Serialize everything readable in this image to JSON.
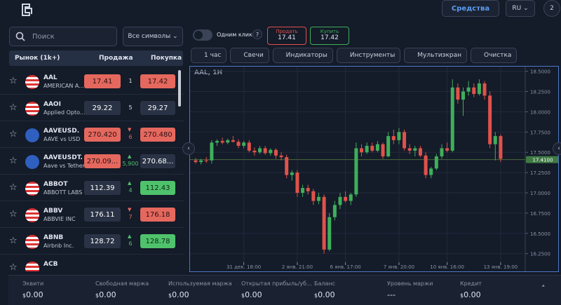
{
  "topbar": {
    "funds_button": "Средства",
    "language": "RU",
    "notifications": "2"
  },
  "sidebar": {
    "search_placeholder": "Поиск",
    "filter": "Все символы",
    "columns": {
      "market": "Рынок (1k+)",
      "sell": "Продажа",
      "buy": "Покупка"
    },
    "rows": [
      {
        "symbol": "AAL",
        "name": "AMERICAN A...",
        "sell": "17.41",
        "spread": "1",
        "buy": "17.42",
        "sell_style": "down",
        "buy_style": "down",
        "trend": "none"
      },
      {
        "symbol": "AAOI",
        "name": "Applied Opto...",
        "sell": "29.22",
        "spread": "5",
        "buy": "29.27",
        "sell_style": "flat",
        "buy_style": "flat",
        "trend": "none"
      },
      {
        "symbol": "AAVEUSD.",
        "name": "AAVE vs USD",
        "sell": "270.420",
        "spread": "6",
        "buy": "270.480",
        "sell_style": "down",
        "buy_style": "down",
        "trend": "down"
      },
      {
        "symbol": "AAVEUSDT.",
        "name": "Aave vs Tether",
        "sell": "270.09...",
        "spread": "5,900",
        "buy": "270.68...",
        "sell_style": "down",
        "buy_style": "flat",
        "trend": "up"
      },
      {
        "symbol": "ABBOT",
        "name": "ABBOTT LABS",
        "sell": "112.39",
        "spread": "4",
        "buy": "112.43",
        "sell_style": "flat",
        "buy_style": "up",
        "trend": "up"
      },
      {
        "symbol": "ABBV",
        "name": "ABBVIE INC",
        "sell": "176.11",
        "spread": "7",
        "buy": "176.18",
        "sell_style": "flat",
        "buy_style": "down",
        "trend": "down"
      },
      {
        "symbol": "ABNB",
        "name": "Airbnb Inc.",
        "sell": "128.72",
        "spread": "6",
        "buy": "128.78",
        "sell_style": "flat",
        "buy_style": "up",
        "trend": "up"
      },
      {
        "symbol": "ACB",
        "name": "",
        "sell": "",
        "spread": "",
        "buy": "",
        "sell_style": "flat",
        "buy_style": "flat",
        "trend": "none"
      }
    ]
  },
  "toolbar": {
    "one_click": "Одним кликом",
    "sell_label": "Продать",
    "sell_price": "17.41",
    "buy_label": "Купить",
    "buy_price": "17.42",
    "buttons": [
      "1 час",
      "Свечи",
      "Индикаторы",
      "Инструменты",
      "Мультиэкран",
      "Очистка"
    ]
  },
  "chart_data": {
    "type": "candlestick",
    "title": "AAL, 1H",
    "up_color": "#3fae5a",
    "down_color": "#e0524a",
    "open": [
      17.4,
      17.38,
      17.4,
      17.4,
      17.62,
      17.64,
      17.62,
      17.65,
      17.63,
      17.58,
      17.62,
      17.52,
      17.5,
      17.55,
      17.49,
      17.53,
      17.46,
      17.44,
      17.22,
      17.25,
      17.0,
      17.06,
      17.02,
      16.9,
      16.95,
      16.3,
      16.7,
      16.85,
      16.95,
      16.9,
      16.98,
      17.55,
      17.5,
      17.58,
      17.52,
      17.6,
      17.45,
      17.7,
      17.65,
      17.75,
      17.55,
      17.52,
      17.55,
      17.46,
      17.22,
      17.3,
      17.45,
      17.55,
      17.52,
      18.3,
      18.15,
      18.25,
      18.3,
      18.22,
      18.35,
      18.2,
      17.6,
      17.7
    ],
    "high": [
      17.43,
      17.42,
      17.44,
      17.65,
      17.66,
      17.68,
      17.67,
      17.7,
      17.66,
      17.64,
      17.65,
      17.56,
      17.58,
      17.58,
      17.55,
      17.55,
      17.5,
      17.47,
      17.28,
      17.28,
      17.1,
      17.1,
      17.05,
      17.0,
      16.98,
      16.75,
      16.9,
      17.0,
      17.02,
      17.0,
      17.62,
      17.6,
      17.62,
      17.62,
      17.64,
      17.62,
      17.75,
      17.78,
      17.8,
      17.78,
      17.6,
      17.58,
      17.58,
      17.5,
      17.32,
      17.48,
      17.6,
      17.62,
      18.4,
      18.35,
      18.3,
      18.38,
      18.35,
      18.4,
      18.38,
      18.25,
      17.75,
      17.72
    ],
    "low": [
      17.36,
      17.35,
      17.37,
      17.36,
      17.58,
      17.6,
      17.6,
      17.62,
      17.55,
      17.55,
      17.5,
      17.46,
      17.48,
      17.47,
      17.46,
      17.42,
      17.4,
      17.18,
      17.15,
      16.95,
      16.95,
      16.98,
      16.85,
      16.86,
      16.25,
      16.28,
      16.66,
      16.8,
      16.88,
      16.85,
      16.95,
      17.45,
      17.48,
      17.5,
      17.5,
      17.42,
      17.44,
      17.6,
      17.6,
      17.52,
      17.48,
      17.45,
      17.44,
      17.18,
      17.18,
      17.28,
      17.42,
      17.5,
      17.5,
      18.1,
      17.95,
      18.2,
      18.18,
      18.2,
      18.15,
      17.55,
      17.4,
      17.38
    ],
    "close": [
      17.38,
      17.4,
      17.39,
      17.62,
      17.64,
      17.62,
      17.65,
      17.63,
      17.58,
      17.62,
      17.52,
      17.5,
      17.55,
      17.49,
      17.53,
      17.46,
      17.44,
      17.22,
      17.25,
      17.0,
      17.06,
      17.02,
      16.9,
      16.95,
      16.3,
      16.7,
      16.85,
      16.95,
      16.9,
      16.98,
      17.55,
      17.5,
      17.58,
      17.52,
      17.6,
      17.45,
      17.7,
      17.65,
      17.75,
      17.55,
      17.52,
      17.55,
      17.46,
      17.22,
      17.3,
      17.45,
      17.55,
      17.52,
      18.3,
      18.15,
      18.25,
      18.3,
      18.22,
      18.35,
      18.2,
      17.6,
      17.7,
      17.42
    ],
    "ylim": [
      16.04,
      18.54
    ],
    "yticks": [
      {
        "value": 16.25,
        "label": "16.2500"
      },
      {
        "value": 16.5,
        "label": "16.5000"
      },
      {
        "value": 16.75,
        "label": "16.7500"
      },
      {
        "value": 17,
        "label": "17.0000"
      },
      {
        "value": 17.25,
        "label": "17.2500"
      },
      {
        "value": 17.5,
        "label": "17.5000"
      },
      {
        "value": 17.75,
        "label": "17.7500"
      },
      {
        "value": 18,
        "label": "18.0000"
      },
      {
        "value": 18.25,
        "label": "18.2500"
      },
      {
        "value": 18.5,
        "label": "18.5000"
      }
    ],
    "xticks": [
      {
        "value": 9,
        "label": "31 дек. 18:00"
      },
      {
        "value": 19,
        "label": "2 янв. 21:00"
      },
      {
        "value": 28,
        "label": "6 янв. 17:00"
      },
      {
        "value": 38,
        "label": "7 янв. 20:00"
      },
      {
        "value": 47,
        "label": "10 янв. 16:00"
      },
      {
        "value": 57,
        "label": "13 янв. 19:00"
      }
    ],
    "last_price": {
      "value": 17.41,
      "label": "17.4100"
    },
    "grid": true
  },
  "footer": {
    "items": [
      {
        "label": "Эквити",
        "currency": "$",
        "value": "0.00"
      },
      {
        "label": "Свободная маржа",
        "currency": "$",
        "value": "0.00"
      },
      {
        "label": "Используемая маржа",
        "currency": "$",
        "value": "0.00"
      },
      {
        "label": "Открытая прибыль/уб...",
        "currency": "$",
        "value": "0.00"
      },
      {
        "label": "Баланс",
        "currency": "$",
        "value": "0.00"
      },
      {
        "label": "Уровень маржи",
        "currency": "",
        "value": "---"
      },
      {
        "label": "Кредит",
        "currency": "$",
        "value": "0.00"
      }
    ]
  }
}
